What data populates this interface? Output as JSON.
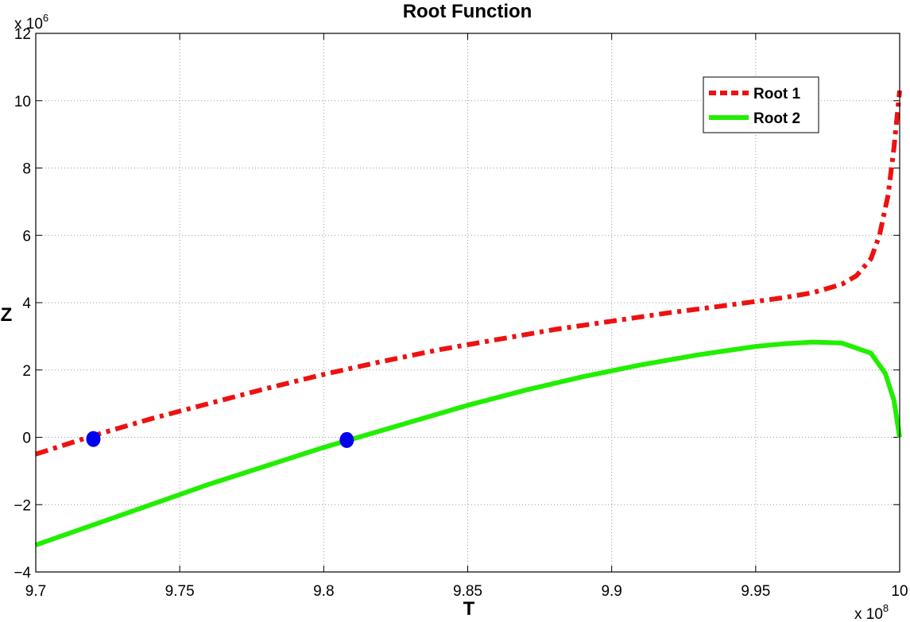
{
  "chart_data": {
    "type": "line",
    "title": "Root Function",
    "xlabel": "T",
    "ylabel": "Z",
    "x_multiplier": "x 10",
    "x_exponent": "8",
    "y_multiplier": "x 10",
    "y_exponent": "6",
    "xlim": [
      9.7,
      10.0
    ],
    "ylim": [
      -4,
      12
    ],
    "xticks": [
      9.7,
      9.75,
      9.8,
      9.85,
      9.9,
      9.95,
      10
    ],
    "xtick_labels": [
      "9.7",
      "9.75",
      "9.8",
      "9.85",
      "9.9",
      "9.95",
      "10"
    ],
    "yticks": [
      -4,
      -2,
      0,
      2,
      4,
      6,
      8,
      10,
      12
    ],
    "ytick_labels": [
      "−4",
      "−2",
      "0",
      "2",
      "4",
      "6",
      "8",
      "10",
      "12"
    ],
    "grid": true,
    "legend_position": "top-right",
    "series": [
      {
        "name": "Root 1",
        "color": "#ee1111",
        "style": "dashdot",
        "x": [
          9.7,
          9.72,
          9.74,
          9.76,
          9.78,
          9.8,
          9.82,
          9.84,
          9.86,
          9.88,
          9.9,
          9.92,
          9.94,
          9.96,
          9.97,
          9.98,
          9.985,
          9.99,
          9.993,
          9.996,
          9.998,
          10.0
        ],
        "y": [
          -0.5,
          0.05,
          0.55,
          1.0,
          1.45,
          1.87,
          2.25,
          2.6,
          2.9,
          3.2,
          3.45,
          3.7,
          3.92,
          4.15,
          4.3,
          4.55,
          4.8,
          5.3,
          6.0,
          7.2,
          8.6,
          10.3
        ]
      },
      {
        "name": "Root 2",
        "color": "#22ee00",
        "style": "solid",
        "x": [
          9.7,
          9.72,
          9.74,
          9.76,
          9.78,
          9.8,
          9.81,
          9.83,
          9.85,
          9.87,
          9.89,
          9.91,
          9.93,
          9.95,
          9.96,
          9.97,
          9.98,
          9.99,
          9.995,
          9.998,
          10.0
        ],
        "y": [
          -3.2,
          -2.6,
          -2.0,
          -1.4,
          -0.85,
          -0.3,
          -0.05,
          0.45,
          0.95,
          1.4,
          1.8,
          2.15,
          2.45,
          2.7,
          2.78,
          2.83,
          2.8,
          2.5,
          1.9,
          1.1,
          0.0
        ]
      }
    ],
    "markers": [
      {
        "x": 9.72,
        "y": -0.05,
        "color": "#0000ee"
      },
      {
        "x": 9.808,
        "y": -0.08,
        "color": "#0000ee"
      }
    ]
  }
}
